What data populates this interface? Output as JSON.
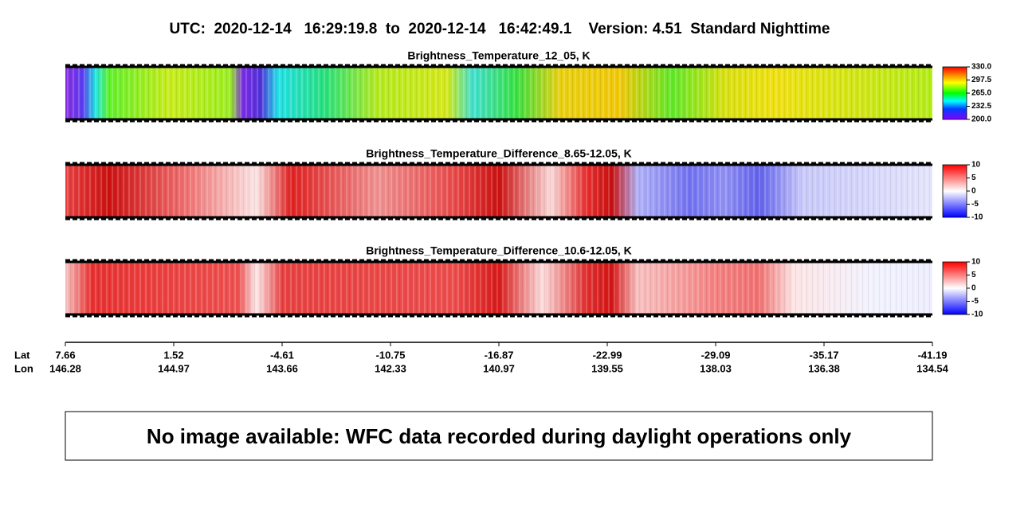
{
  "title": "UTC:  2020-12-14   16:29:19.8  to  2020-12-14   16:42:49.1    Version: 4.51  Standard Nighttime",
  "chart_data": [
    {
      "type": "heatmap",
      "title": "Brightness_Temperature_12_05, K",
      "colorbar_lim": [
        200,
        330
      ],
      "colorbar_ticks": [
        {
          "value": 330,
          "label": "330.0"
        },
        {
          "value": 297.5,
          "label": "297.5"
        },
        {
          "value": 265,
          "label": "265.0"
        },
        {
          "value": 232.5,
          "label": "232.5"
        },
        {
          "value": 200,
          "label": "200.0"
        }
      ]
    },
    {
      "type": "heatmap",
      "title": "Brightness_Temperature_Difference_8.65-12.05, K",
      "colorbar_lim": [
        -10,
        10
      ],
      "colorbar_ticks": [
        10,
        5,
        0,
        -5,
        -10
      ]
    },
    {
      "type": "heatmap",
      "title": "Brightness_Temperature_Difference_10.6-12.05, K",
      "colorbar_lim": [
        -10,
        10
      ],
      "colorbar_ticks": [
        10,
        5,
        0,
        -5,
        -10
      ]
    }
  ],
  "x_axis": {
    "lat_label": "Lat",
    "lon_label": "Lon",
    "lat": [
      7.66,
      1.52,
      -4.61,
      -10.75,
      -16.87,
      -22.99,
      -29.09,
      -35.17,
      -41.19
    ],
    "lon": [
      146.28,
      144.97,
      143.66,
      142.33,
      140.97,
      139.55,
      138.03,
      136.38,
      134.54
    ]
  },
  "message": "No image available: WFC data recorded during daylight operations only"
}
